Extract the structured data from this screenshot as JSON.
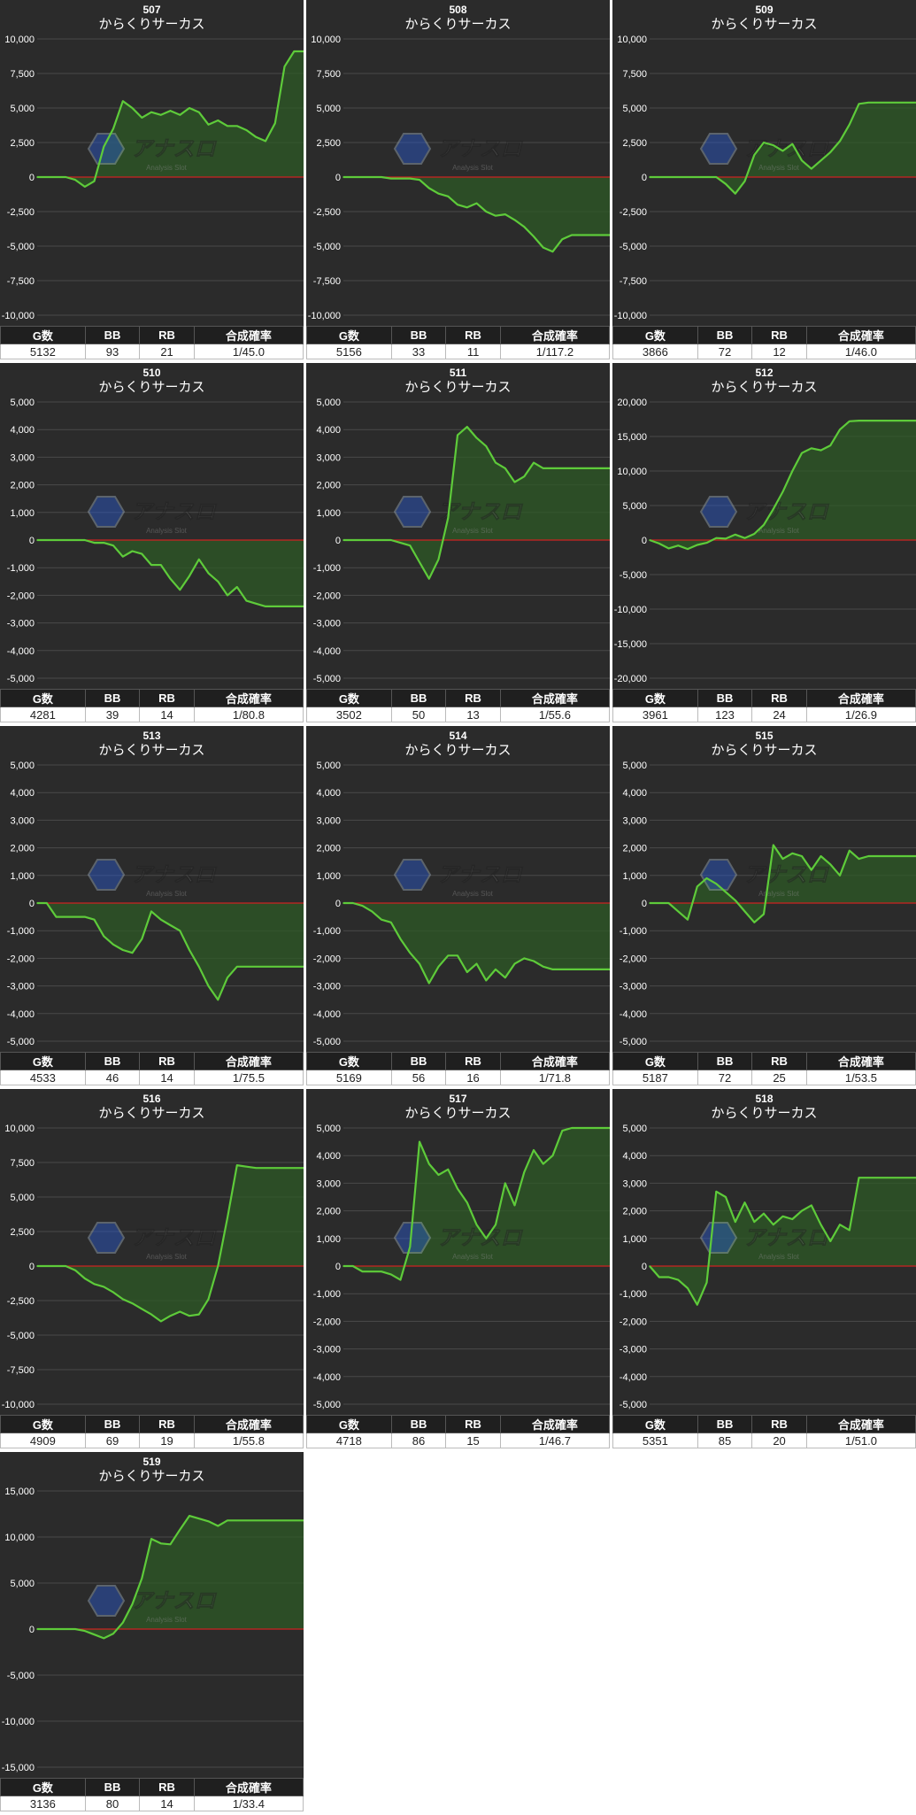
{
  "colors": {
    "panel": "#2b2b2b",
    "grid": "#4a4a4a",
    "zero_line": "#cc2222",
    "line": "#5ecb3a",
    "fill": "#2e5a25",
    "text": "#ffffff",
    "axis_text": "#ffffff"
  },
  "watermark": {
    "text": "アナスロ",
    "subtext": "Analysis Slot"
  },
  "table_headers": {
    "games": "G数",
    "bb": "BB",
    "rb": "RB",
    "rate": "合成確率"
  },
  "chart_data": [
    {
      "type": "area",
      "machine": "507",
      "title": "からくりサーカス",
      "ylim": [
        -10000,
        10000
      ],
      "yticks": [
        10000,
        7500,
        5000,
        2500,
        0,
        -2500,
        -5000,
        -7500,
        -10000
      ],
      "series": [
        {
          "values": [
            0,
            0,
            0,
            0,
            -200,
            -700,
            -300,
            2200,
            3500,
            5500,
            5000,
            4300,
            4700,
            4500,
            4800,
            4500,
            5000,
            4700,
            3800,
            4100,
            3700,
            3700,
            3400,
            2900,
            2600,
            3900,
            8000,
            9100,
            9100
          ]
        }
      ],
      "stats": {
        "games": "5132",
        "bb": "93",
        "rb": "21",
        "rate": "1/45.0"
      }
    },
    {
      "type": "area",
      "machine": "508",
      "title": "からくりサーカス",
      "ylim": [
        -10000,
        10000
      ],
      "yticks": [
        10000,
        7500,
        5000,
        2500,
        0,
        -2500,
        -5000,
        -7500,
        -10000
      ],
      "series": [
        {
          "values": [
            0,
            0,
            0,
            0,
            0,
            -100,
            -100,
            -100,
            -200,
            -800,
            -1200,
            -1400,
            -2000,
            -2200,
            -1900,
            -2500,
            -2800,
            -2700,
            -3100,
            -3600,
            -4300,
            -5100,
            -5400,
            -4500,
            -4200,
            -4200,
            -4200,
            -4200,
            -4200
          ]
        }
      ],
      "stats": {
        "games": "5156",
        "bb": "33",
        "rb": "11",
        "rate": "1/117.2"
      }
    },
    {
      "type": "area",
      "machine": "509",
      "title": "からくりサーカス",
      "ylim": [
        -10000,
        10000
      ],
      "yticks": [
        10000,
        7500,
        5000,
        2500,
        0,
        -2500,
        -5000,
        -7500,
        -10000
      ],
      "series": [
        {
          "values": [
            0,
            0,
            0,
            0,
            0,
            0,
            0,
            0,
            -500,
            -1200,
            -300,
            1600,
            2500,
            2300,
            1900,
            2400,
            1200,
            600,
            1200,
            1800,
            2600,
            3800,
            5300,
            5400,
            5400,
            5400,
            5400,
            5400,
            5400
          ]
        }
      ],
      "stats": {
        "games": "3866",
        "bb": "72",
        "rb": "12",
        "rate": "1/46.0"
      }
    },
    {
      "type": "area",
      "machine": "510",
      "title": "からくりサーカス",
      "ylim": [
        -5000,
        5000
      ],
      "yticks": [
        5000,
        4000,
        3000,
        2000,
        1000,
        0,
        -1000,
        -2000,
        -3000,
        -4000,
        -5000
      ],
      "series": [
        {
          "values": [
            0,
            0,
            0,
            0,
            0,
            0,
            -100,
            -100,
            -200,
            -600,
            -400,
            -500,
            -900,
            -900,
            -1400,
            -1800,
            -1300,
            -700,
            -1200,
            -1500,
            -2000,
            -1700,
            -2200,
            -2300,
            -2400,
            -2400,
            -2400,
            -2400,
            -2400
          ]
        }
      ],
      "stats": {
        "games": "4281",
        "bb": "39",
        "rb": "14",
        "rate": "1/80.8"
      }
    },
    {
      "type": "area",
      "machine": "511",
      "title": "からくりサーカス",
      "ylim": [
        -5000,
        5000
      ],
      "yticks": [
        5000,
        4000,
        3000,
        2000,
        1000,
        0,
        -1000,
        -2000,
        -3000,
        -4000,
        -5000
      ],
      "series": [
        {
          "values": [
            0,
            0,
            0,
            0,
            0,
            0,
            -100,
            -200,
            -800,
            -1400,
            -700,
            800,
            3800,
            4100,
            3700,
            3400,
            2800,
            2600,
            2100,
            2300,
            2800,
            2600,
            2600,
            2600,
            2600,
            2600,
            2600,
            2600,
            2600
          ]
        }
      ],
      "stats": {
        "games": "3502",
        "bb": "50",
        "rb": "13",
        "rate": "1/55.6"
      }
    },
    {
      "type": "area",
      "machine": "512",
      "title": "からくりサーカス",
      "ylim": [
        -20000,
        20000
      ],
      "yticks": [
        20000,
        15000,
        10000,
        5000,
        0,
        -5000,
        -10000,
        -15000,
        -20000
      ],
      "series": [
        {
          "values": [
            0,
            -500,
            -1200,
            -800,
            -1300,
            -700,
            -400,
            300,
            200,
            800,
            300,
            900,
            2200,
            4500,
            7000,
            10000,
            12600,
            13300,
            13000,
            13700,
            16000,
            17200,
            17300,
            17300,
            17300,
            17300,
            17300,
            17300,
            17300
          ]
        }
      ],
      "stats": {
        "games": "3961",
        "bb": "123",
        "rb": "24",
        "rate": "1/26.9"
      }
    },
    {
      "type": "area",
      "machine": "513",
      "title": "からくりサーカス",
      "ylim": [
        -5000,
        5000
      ],
      "yticks": [
        5000,
        4000,
        3000,
        2000,
        1000,
        0,
        -1000,
        -2000,
        -3000,
        -4000,
        -5000
      ],
      "series": [
        {
          "values": [
            0,
            0,
            -500,
            -500,
            -500,
            -500,
            -600,
            -1200,
            -1500,
            -1700,
            -1800,
            -1300,
            -300,
            -600,
            -800,
            -1000,
            -1700,
            -2300,
            -3000,
            -3500,
            -2700,
            -2300,
            -2300,
            -2300,
            -2300,
            -2300,
            -2300,
            -2300,
            -2300
          ]
        }
      ],
      "stats": {
        "games": "4533",
        "bb": "46",
        "rb": "14",
        "rate": "1/75.5"
      }
    },
    {
      "type": "area",
      "machine": "514",
      "title": "からくりサーカス",
      "ylim": [
        -5000,
        5000
      ],
      "yticks": [
        5000,
        4000,
        3000,
        2000,
        1000,
        0,
        -1000,
        -2000,
        -3000,
        -4000,
        -5000
      ],
      "series": [
        {
          "values": [
            0,
            0,
            -100,
            -300,
            -600,
            -700,
            -1300,
            -1800,
            -2200,
            -2900,
            -2300,
            -1900,
            -1900,
            -2500,
            -2200,
            -2800,
            -2400,
            -2700,
            -2200,
            -2000,
            -2100,
            -2300,
            -2400,
            -2400,
            -2400,
            -2400,
            -2400,
            -2400,
            -2400
          ]
        }
      ],
      "stats": {
        "games": "5169",
        "bb": "56",
        "rb": "16",
        "rate": "1/71.8"
      }
    },
    {
      "type": "area",
      "machine": "515",
      "title": "からくりサーカス",
      "ylim": [
        -5000,
        5000
      ],
      "yticks": [
        5000,
        4000,
        3000,
        2000,
        1000,
        0,
        -1000,
        -2000,
        -3000,
        -4000,
        -5000
      ],
      "series": [
        {
          "values": [
            0,
            0,
            0,
            -300,
            -600,
            600,
            900,
            700,
            400,
            100,
            -300,
            -700,
            -400,
            2100,
            1600,
            1800,
            1700,
            1200,
            1700,
            1400,
            1000,
            1900,
            1600,
            1700,
            1700,
            1700,
            1700,
            1700,
            1700
          ]
        }
      ],
      "stats": {
        "games": "5187",
        "bb": "72",
        "rb": "25",
        "rate": "1/53.5"
      }
    },
    {
      "type": "area",
      "machine": "516",
      "title": "からくりサーカス",
      "ylim": [
        -10000,
        10000
      ],
      "yticks": [
        10000,
        7500,
        5000,
        2500,
        0,
        -2500,
        -5000,
        -7500,
        -10000
      ],
      "series": [
        {
          "values": [
            0,
            0,
            0,
            0,
            -300,
            -900,
            -1300,
            -1500,
            -1900,
            -2400,
            -2700,
            -3100,
            -3500,
            -4000,
            -3600,
            -3300,
            -3600,
            -3500,
            -2400,
            0,
            3500,
            7300,
            7200,
            7100,
            7100,
            7100,
            7100,
            7100,
            7100
          ]
        }
      ],
      "stats": {
        "games": "4909",
        "bb": "69",
        "rb": "19",
        "rate": "1/55.8"
      }
    },
    {
      "type": "area",
      "machine": "517",
      "title": "からくりサーカス",
      "ylim": [
        -5000,
        5000
      ],
      "yticks": [
        5000,
        4000,
        3000,
        2000,
        1000,
        0,
        -1000,
        -2000,
        -3000,
        -4000,
        -5000
      ],
      "series": [
        {
          "values": [
            0,
            0,
            -200,
            -200,
            -200,
            -300,
            -500,
            700,
            4500,
            3700,
            3300,
            3500,
            2800,
            2300,
            1500,
            1000,
            1500,
            3000,
            2200,
            3400,
            4200,
            3700,
            4000,
            4900,
            5000,
            5000,
            5000,
            5000,
            5000
          ]
        }
      ],
      "stats": {
        "games": "4718",
        "bb": "86",
        "rb": "15",
        "rate": "1/46.7"
      }
    },
    {
      "type": "area",
      "machine": "518",
      "title": "からくりサーカス",
      "ylim": [
        -5000,
        5000
      ],
      "yticks": [
        5000,
        4000,
        3000,
        2000,
        1000,
        0,
        -1000,
        -2000,
        -3000,
        -4000,
        -5000
      ],
      "series": [
        {
          "values": [
            0,
            -400,
            -400,
            -500,
            -800,
            -1400,
            -600,
            2700,
            2500,
            1600,
            2300,
            1600,
            1900,
            1500,
            1800,
            1700,
            2000,
            2200,
            1500,
            900,
            1500,
            1300,
            3200,
            3200,
            3200,
            3200,
            3200,
            3200,
            3200
          ]
        }
      ],
      "stats": {
        "games": "5351",
        "bb": "85",
        "rb": "20",
        "rate": "1/51.0"
      }
    },
    {
      "type": "area",
      "machine": "519",
      "title": "からくりサーカス",
      "ylim": [
        -15000,
        15000
      ],
      "yticks": [
        15000,
        10000,
        5000,
        0,
        -5000,
        -10000,
        -15000
      ],
      "series": [
        {
          "values": [
            0,
            0,
            0,
            0,
            0,
            -200,
            -600,
            -1000,
            -500,
            700,
            2700,
            5500,
            9800,
            9300,
            9200,
            10800,
            12300,
            12000,
            11700,
            11200,
            11800,
            11800,
            11800,
            11800,
            11800,
            11800,
            11800,
            11800,
            11800
          ]
        }
      ],
      "stats": {
        "games": "3136",
        "bb": "80",
        "rb": "14",
        "rate": "1/33.4"
      }
    }
  ]
}
